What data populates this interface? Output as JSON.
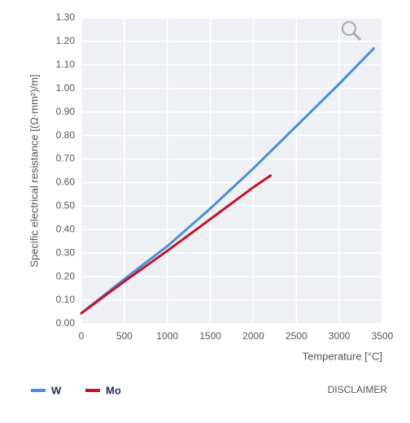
{
  "chart_data": {
    "type": "line",
    "y_label": "Specific electrical resistance [(Ω·mm²)/m]",
    "x_label": "Temperature [°C]",
    "xlim": [
      0,
      3500
    ],
    "xticks": [
      0,
      500,
      1000,
      1500,
      2000,
      2500,
      3000,
      3500
    ],
    "ylim": [
      0,
      1.3
    ],
    "yticks": [
      {
        "value": 0,
        "label": "0.00"
      },
      {
        "value": 0.1,
        "label": "0.10"
      },
      {
        "value": 0.2,
        "label": "0.20"
      },
      {
        "value": 0.3,
        "label": "0.30"
      },
      {
        "value": 0.4,
        "label": "0.40"
      },
      {
        "value": 0.5,
        "label": "0.50"
      },
      {
        "value": 0.6,
        "label": "0.60"
      },
      {
        "value": 0.7,
        "label": "0.70"
      },
      {
        "value": 0.8,
        "label": "0.80"
      },
      {
        "value": 0.9,
        "label": "0.90"
      },
      {
        "value": 1,
        "label": "1.00"
      },
      {
        "value": 1.1,
        "label": "1.10"
      },
      {
        "value": 1.2,
        "label": "1.20"
      },
      {
        "value": 1.3,
        "label": "1.30"
      }
    ],
    "grid": true,
    "series": [
      {
        "name": "W",
        "color": "#4a8fd8",
        "x": [
          0,
          500,
          1000,
          1500,
          2000,
          2500,
          3000,
          3400
        ],
        "values": [
          0.045,
          0.19,
          0.33,
          0.49,
          0.66,
          0.84,
          1.02,
          1.17
        ]
      },
      {
        "name": "Mo",
        "color": "#c8102e",
        "x": [
          0,
          500,
          1000,
          1500,
          2000,
          2200
        ],
        "values": [
          0.045,
          0.18,
          0.31,
          0.445,
          0.58,
          0.63
        ]
      }
    ]
  },
  "disclaimer": "DISCLAIMER"
}
